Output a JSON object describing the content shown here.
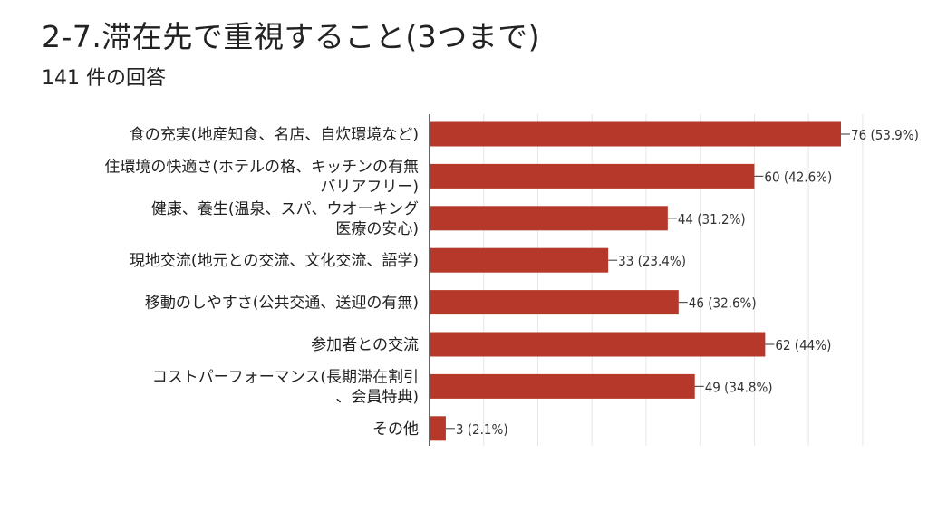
{
  "header": {
    "title": "2-7.滞在先で重視すること(3つまで)",
    "subtitle": "141 件の回答"
  },
  "colors": {
    "bar": "#b5382a",
    "grid": "#e6e6e6",
    "axis": "#333333"
  },
  "chart_data": {
    "type": "bar",
    "orientation": "horizontal",
    "categories": [
      [
        "食の充実(地産知食、名店、自炊環境など)"
      ],
      [
        "住環境の快適さ(ホテルの格、キッチンの有無",
        "バリアフリー)"
      ],
      [
        "健康、養生(温泉、スパ、ウオーキング",
        "医療の安心)"
      ],
      [
        "現地交流(地元との交流、文化交流、語学)"
      ],
      [
        "移動のしやすさ(公共交通、送迎の有無)"
      ],
      [
        "参加者との交流"
      ],
      [
        "コストパーフォーマンス(長期滞在割引",
        "、会員特典)"
      ],
      [
        "その他"
      ]
    ],
    "values": [
      76,
      60,
      44,
      33,
      46,
      62,
      49,
      3
    ],
    "value_labels": [
      "76 (53.9%)",
      "60 (42.6%)",
      "44 (31.2%)",
      "33 (23.4%)",
      "46 (32.6%)",
      "62 (44%)",
      "49 (34.8%)",
      "3 (2.1%)"
    ],
    "xlim": [
      0,
      80
    ],
    "grid": true
  }
}
